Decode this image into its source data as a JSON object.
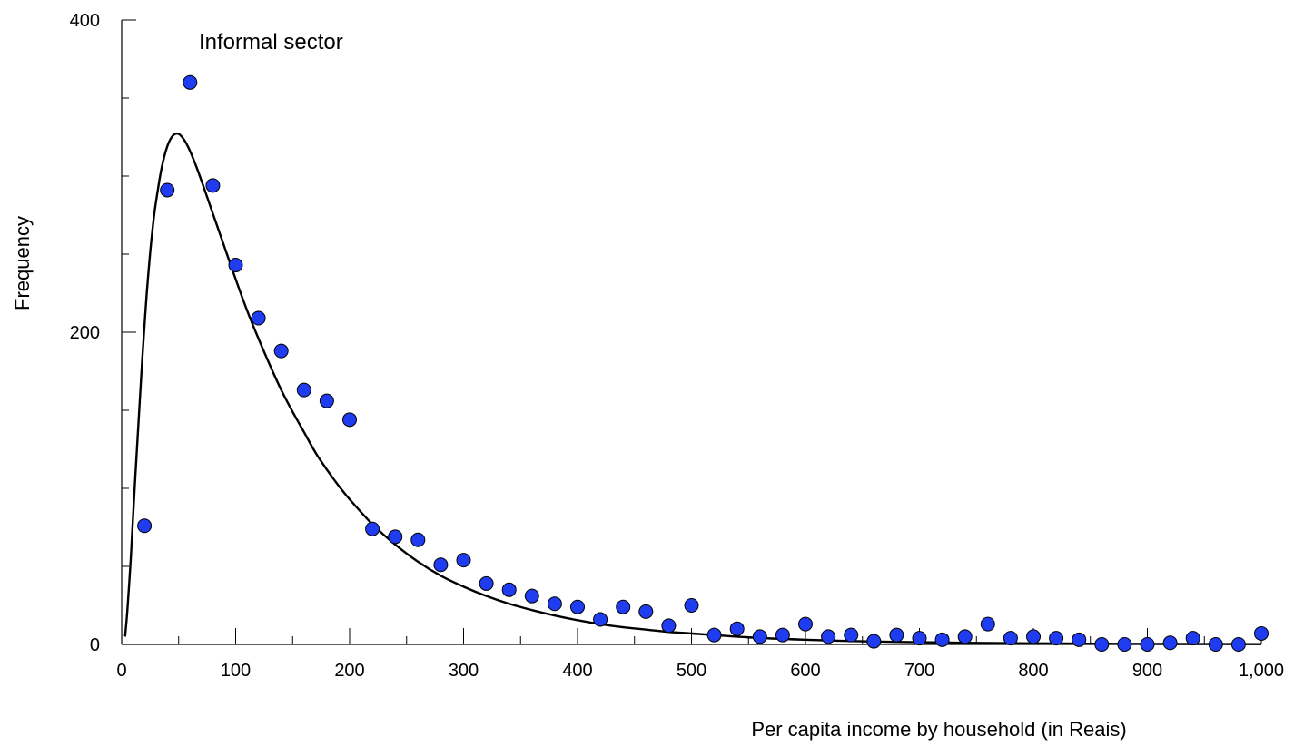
{
  "chart_data": {
    "type": "scatter",
    "annotation": "Informal sector",
    "xlabel": "Per capita income by household (in Reais)",
    "ylabel": "Frequency",
    "xlim": [
      0,
      1000
    ],
    "ylim": [
      0,
      400
    ],
    "x_ticks": [
      "0",
      "100",
      "200",
      "300",
      "400",
      "500",
      "600",
      "700",
      "800",
      "900",
      "1,000"
    ],
    "y_ticks": [
      "0",
      "200",
      "400"
    ],
    "grid": false,
    "marker_color": "#1f3cf0",
    "marker_edge_color": "#000000",
    "curve_color": "#000000",
    "series": [
      {
        "type": "scatter",
        "x": [
          20,
          40,
          60,
          80,
          100,
          120,
          140,
          160,
          180,
          200,
          220,
          240,
          260,
          280,
          300,
          320,
          340,
          360,
          380,
          400,
          420,
          440,
          460,
          480,
          500,
          520,
          540,
          560,
          580,
          600,
          620,
          640,
          660,
          680,
          700,
          720,
          740,
          760,
          780,
          800,
          820,
          840,
          860,
          880,
          900,
          920,
          940,
          960,
          980,
          1000
        ],
        "y": [
          76,
          291,
          360,
          294,
          243,
          209,
          188,
          163,
          156,
          144,
          74,
          69,
          67,
          51,
          54,
          39,
          35,
          31,
          26,
          24,
          16,
          24,
          21,
          12,
          25,
          6,
          10,
          5,
          6,
          13,
          5,
          6,
          2,
          6,
          4,
          3,
          5,
          13,
          4,
          5,
          4,
          3,
          0,
          0,
          0,
          1,
          4,
          0,
          0,
          7
        ]
      },
      {
        "type": "line",
        "x": [
          3,
          5,
          8,
          10,
          12,
          15,
          18,
          20,
          22,
          25,
          28,
          30,
          35,
          40,
          45,
          50,
          55,
          60,
          65,
          70,
          80,
          90,
          100,
          110,
          120,
          130,
          140,
          150,
          160,
          170,
          180,
          190,
          200,
          220,
          240,
          260,
          280,
          300,
          320,
          340,
          360,
          380,
          400,
          420,
          440,
          460,
          480,
          500,
          550,
          600,
          650,
          700,
          750,
          800,
          850,
          900,
          950,
          1000
        ],
        "y": [
          5,
          22,
          55,
          82,
          108,
          145,
          182,
          204,
          225,
          251,
          272,
          283,
          305,
          319,
          326,
          327,
          323,
          316,
          307,
          297,
          276,
          255,
          234,
          214,
          196,
          179,
          163,
          149,
          136,
          123,
          112,
          102,
          93,
          77,
          64,
          53,
          44,
          37,
          31,
          26,
          22,
          18.5,
          15.5,
          13,
          11,
          9.5,
          8,
          7,
          4.5,
          3,
          2,
          1.4,
          1,
          0.7,
          0.5,
          0.35,
          0.25,
          0.2
        ]
      }
    ]
  }
}
